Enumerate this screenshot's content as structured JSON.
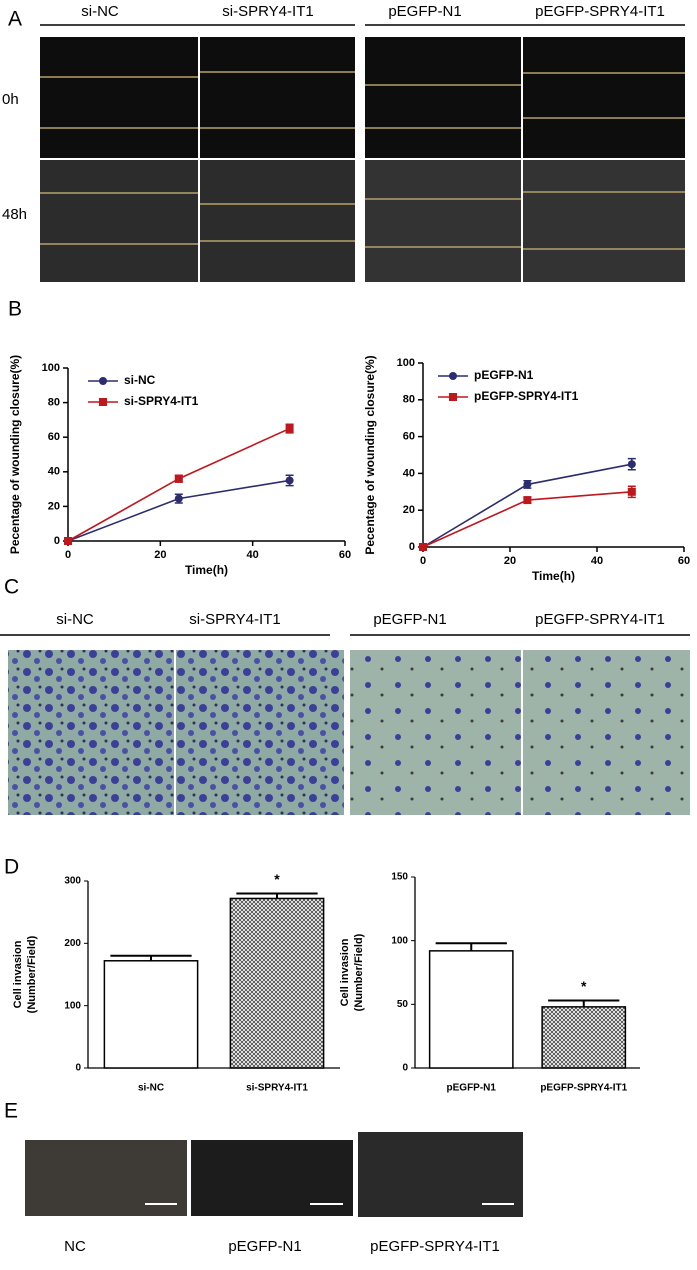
{
  "panel_labels": [
    "A",
    "B",
    "C",
    "D",
    "E"
  ],
  "panel_a": {
    "column_headers": [
      "si-NC",
      "si-SPRY4-IT1",
      "pEGFP-N1",
      "pEGFP-SPRY4-IT1"
    ],
    "row_labels": [
      "0h",
      "48h"
    ]
  },
  "panel_c": {
    "column_headers": [
      "si-NC",
      "si-SPRY4-IT1",
      "pEGFP-N1",
      "pEGFP-SPRY4-IT1"
    ]
  },
  "panel_e": {
    "captions": [
      "NC",
      "pEGFP-N1",
      "pEGFP-SPRY4-IT1"
    ]
  },
  "chart_data": [
    {
      "type": "line",
      "xlabel": "Time(h)",
      "ylabel": "Pecentage of wounding closure(%)",
      "x": [
        0,
        24,
        48
      ],
      "series": [
        {
          "name": "si-NC",
          "color": "#2b2d6e",
          "marker": "circle",
          "values": [
            0,
            24.5,
            35
          ],
          "errors": [
            0,
            2.5,
            3
          ]
        },
        {
          "name": "si-SPRY4-IT1",
          "color": "#c0171d",
          "marker": "square",
          "values": [
            0,
            36,
            65
          ],
          "errors": [
            0,
            2,
            2.5
          ]
        }
      ],
      "xlim": [
        0,
        60
      ],
      "xticks": [
        0,
        20,
        40,
        60
      ],
      "ylim": [
        0,
        100
      ],
      "yticks": [
        0,
        20,
        40,
        60,
        80,
        100
      ]
    },
    {
      "type": "line",
      "xlabel": "Time(h)",
      "ylabel": "Pecentage of wounding closure(%)",
      "x": [
        0,
        24,
        48
      ],
      "series": [
        {
          "name": "pEGFP-N1",
          "color": "#2b2d6e",
          "marker": "circle",
          "values": [
            0,
            34,
            45
          ],
          "errors": [
            0,
            2,
            3
          ]
        },
        {
          "name": "pEGFP-SPRY4-IT1",
          "color": "#c0171d",
          "marker": "square",
          "values": [
            0,
            25.5,
            30
          ],
          "errors": [
            0,
            1.5,
            3
          ]
        }
      ],
      "xlim": [
        0,
        60
      ],
      "xticks": [
        0,
        20,
        40,
        60
      ],
      "ylim": [
        0,
        100
      ],
      "yticks": [
        0,
        20,
        40,
        60,
        80,
        100
      ]
    },
    {
      "type": "bar",
      "ylabel": [
        "Cell invasion",
        "(Number/Field)"
      ],
      "categories": [
        "si-NC",
        "si-SPRY4-IT1"
      ],
      "values": [
        172,
        272
      ],
      "errors": [
        8,
        8
      ],
      "fills": [
        "white",
        "crosshatch"
      ],
      "significance": [
        null,
        "*"
      ],
      "ylim": [
        0,
        300
      ],
      "yticks": [
        0,
        100,
        200,
        300
      ]
    },
    {
      "type": "bar",
      "ylabel": [
        "Cell invasion",
        "(Number/Field)"
      ],
      "categories": [
        "pEGFP-N1",
        "pEGFP-SPRY4-IT1"
      ],
      "values": [
        92,
        48
      ],
      "errors": [
        6,
        5
      ],
      "fills": [
        "white",
        "crosshatch"
      ],
      "significance": [
        null,
        "*"
      ],
      "ylim": [
        0,
        150
      ],
      "yticks": [
        0,
        50,
        100,
        150
      ]
    }
  ]
}
